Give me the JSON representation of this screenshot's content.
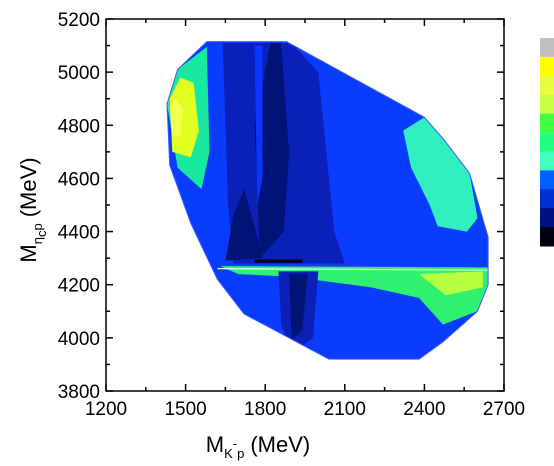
{
  "chart_data": {
    "type": "heatmap",
    "title": "",
    "xlabel": {
      "main": "M",
      "sub": "K",
      "sup": "-",
      "sub2": "p",
      "unit": "(MeV)"
    },
    "ylabel": {
      "main": "M",
      "sub": "η",
      "subsub": "c",
      "sub2": "p",
      "unit": "(MeV)"
    },
    "xlim": [
      1200,
      2700
    ],
    "ylim": [
      3800,
      5200
    ],
    "xticks": [
      "1200",
      "1500",
      "1800",
      "2100",
      "2400",
      "2700"
    ],
    "yticks": [
      "3800",
      "4000",
      "4200",
      "4400",
      "4600",
      "4800",
      "5000",
      "5200"
    ],
    "grid": false,
    "colorbar": {
      "visible_fraction": "partial (clipped at right edge)",
      "colors": [
        "#c0c0c0",
        "#ffff00",
        "#e8ff40",
        "#c8ff40",
        "#40ff40",
        "#20ff80",
        "#40ffc0",
        "#0060ff",
        "#0030d0",
        "#001080",
        "#000010"
      ]
    },
    "boundary": [
      [
        1580,
        5115
      ],
      [
        1880,
        5115
      ],
      [
        2400,
        4830
      ],
      [
        2470,
        4750
      ],
      [
        2570,
        4620
      ],
      [
        2640,
        4380
      ],
      [
        2640,
        4200
      ],
      [
        2600,
        4100
      ],
      [
        2470,
        3985
      ],
      [
        2380,
        3920
      ],
      [
        2040,
        3920
      ],
      [
        1720,
        4090
      ],
      [
        1620,
        4220
      ],
      [
        1520,
        4430
      ],
      [
        1440,
        4650
      ],
      [
        1430,
        4880
      ],
      [
        1470,
        5010
      ]
    ],
    "regions": [
      {
        "level": "dark-blue",
        "color": "#0a20b8",
        "polygon": [
          [
            1640,
            5110
          ],
          [
            1900,
            5110
          ],
          [
            2000,
            5000
          ],
          [
            2060,
            4400
          ],
          [
            2100,
            4280
          ],
          [
            1680,
            4280
          ],
          [
            1660,
            4500
          ]
        ]
      },
      {
        "level": "navy",
        "color": "#001478",
        "polygon": [
          [
            1820,
            5110
          ],
          [
            1860,
            5110
          ],
          [
            1890,
            4700
          ],
          [
            1870,
            4400
          ],
          [
            1780,
            4300
          ],
          [
            1760,
            4800
          ]
        ]
      },
      {
        "level": "navy",
        "color": "#001478",
        "polygon": [
          [
            1680,
            4460
          ],
          [
            1720,
            4560
          ],
          [
            1760,
            4420
          ],
          [
            1790,
            4300
          ],
          [
            1650,
            4290
          ]
        ]
      },
      {
        "level": "blue-bright",
        "color": "#0a34ff",
        "polygon": [
          [
            1760,
            5100
          ],
          [
            1790,
            5100
          ],
          [
            1790,
            4600
          ],
          [
            1770,
            4500
          ]
        ]
      },
      {
        "level": "green-edge",
        "color": "#18e8a0",
        "polygon": [
          [
            1470,
            5010
          ],
          [
            1580,
            5095
          ],
          [
            1590,
            4700
          ],
          [
            1560,
            4560
          ],
          [
            1470,
            4640
          ],
          [
            1430,
            4880
          ]
        ]
      },
      {
        "level": "yellow",
        "color": "#e0ff20",
        "polygon": [
          [
            1440,
            4900
          ],
          [
            1480,
            4980
          ],
          [
            1530,
            4960
          ],
          [
            1550,
            4780
          ],
          [
            1520,
            4680
          ],
          [
            1450,
            4700
          ]
        ]
      },
      {
        "level": "light-yellow",
        "color": "#f8ff50",
        "polygon": [
          [
            1440,
            4870
          ],
          [
            1460,
            4900
          ],
          [
            1490,
            4860
          ],
          [
            1480,
            4760
          ],
          [
            1450,
            4760
          ]
        ]
      },
      {
        "level": "cyan",
        "color": "#30f0c0",
        "polygon": [
          [
            2320,
            4780
          ],
          [
            2400,
            4830
          ],
          [
            2470,
            4750
          ],
          [
            2570,
            4620
          ],
          [
            2600,
            4450
          ],
          [
            2560,
            4400
          ],
          [
            2450,
            4420
          ],
          [
            2420,
            4500
          ],
          [
            2350,
            4640
          ]
        ]
      },
      {
        "level": "green-band",
        "color": "#30f070",
        "polygon": [
          [
            1630,
            4270
          ],
          [
            2640,
            4265
          ],
          [
            2640,
            4180
          ],
          [
            2600,
            4100
          ],
          [
            2470,
            4050
          ],
          [
            2380,
            4150
          ],
          [
            2200,
            4190
          ],
          [
            1900,
            4230
          ],
          [
            1700,
            4240
          ]
        ]
      },
      {
        "level": "yellow-band",
        "color": "#b8ff40",
        "polygon": [
          [
            2380,
            4240
          ],
          [
            2620,
            4250
          ],
          [
            2620,
            4190
          ],
          [
            2480,
            4160
          ]
        ]
      },
      {
        "level": "blue-lower",
        "color": "#0a20b8",
        "polygon": [
          [
            1850,
            4250
          ],
          [
            2000,
            4250
          ],
          [
            1980,
            4000
          ],
          [
            1900,
            3940
          ],
          [
            1860,
            4050
          ]
        ]
      },
      {
        "level": "navy-lower",
        "color": "#001478",
        "polygon": [
          [
            1890,
            4240
          ],
          [
            1960,
            4240
          ],
          [
            1940,
            4030
          ],
          [
            1900,
            3990
          ]
        ]
      },
      {
        "level": "dark-line",
        "color": "#000020",
        "polygon": [
          [
            1760,
            4295
          ],
          [
            1940,
            4295
          ],
          [
            1940,
            4283
          ],
          [
            1760,
            4283
          ]
        ]
      },
      {
        "level": "white-line",
        "color": "#e8f8ff",
        "polygon": [
          [
            1620,
            4263
          ],
          [
            2640,
            4257
          ],
          [
            2640,
            4253
          ],
          [
            1620,
            4258
          ]
        ]
      }
    ]
  }
}
